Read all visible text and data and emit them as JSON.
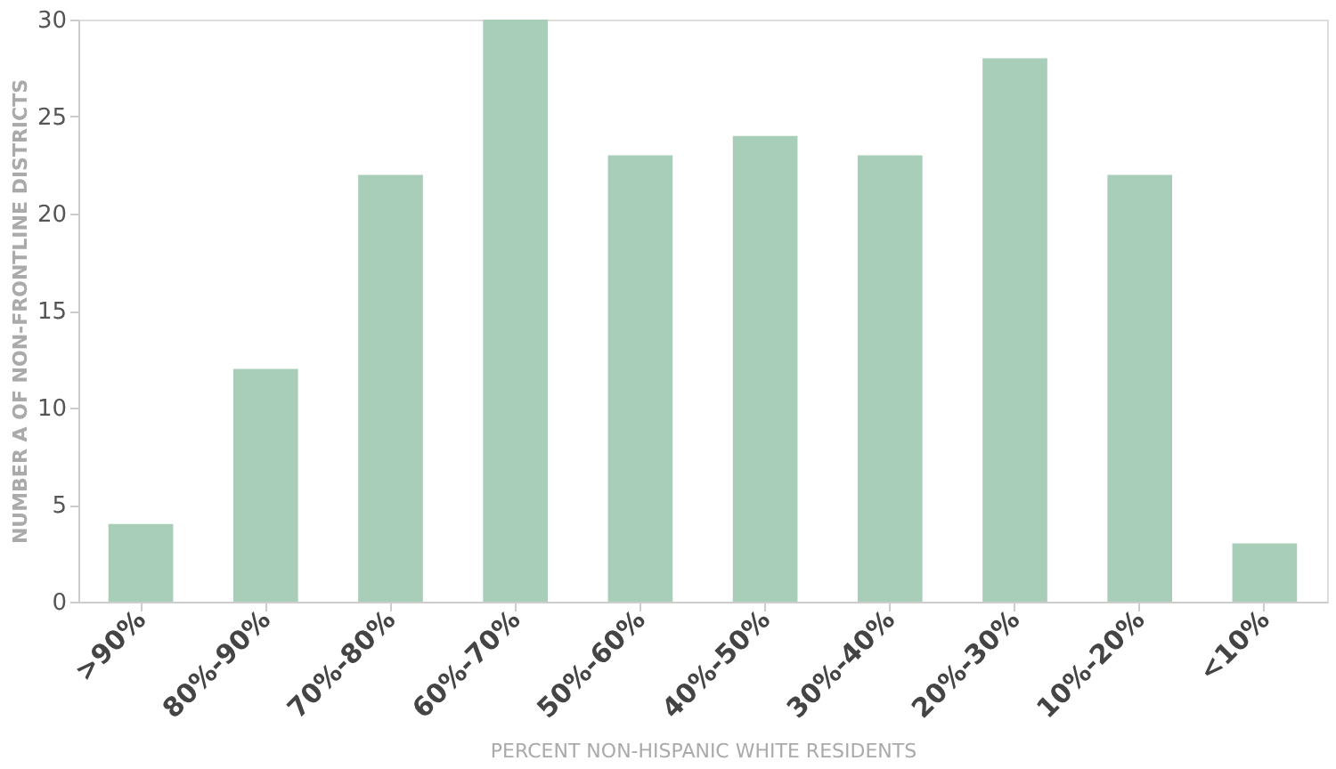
{
  "chart_data": {
    "type": "bar",
    "xlabel": "PERCENT NON-HISPANIC WHITE RESIDENTS",
    "ylabel": "NUMBER A OF NON-FRONTLINE DISTRICTS",
    "categories": [
      ">90%",
      "80%-90%",
      "70%-80%",
      "60%-70%",
      "50%-60%",
      "40%-50%",
      "30%-40%",
      "20%-30%",
      "10%-20%",
      "<10%"
    ],
    "values": [
      4,
      12,
      22,
      30,
      23,
      24,
      23,
      28,
      22,
      3
    ],
    "color": "#a8cdb8",
    "ylim": [
      0,
      30
    ],
    "yticks": [
      0,
      5,
      10,
      15,
      20,
      25,
      30
    ],
    "grid": false
  }
}
